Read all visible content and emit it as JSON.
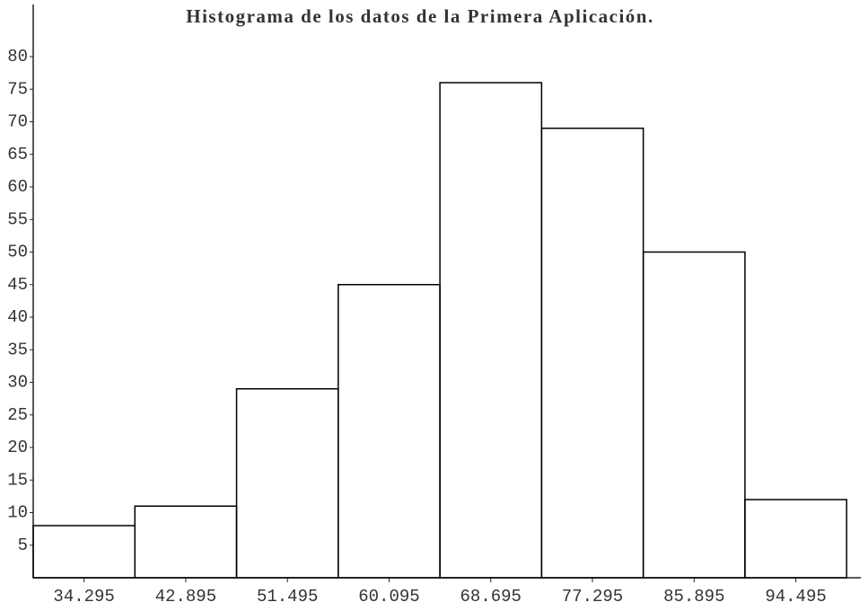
{
  "chart_data": {
    "type": "histogram",
    "title": "Histograma de los datos de la Primera Aplicación.",
    "bins": [
      29.995,
      38.595,
      47.195,
      55.795,
      64.395,
      72.995,
      81.595,
      90.195,
      98.795
    ],
    "counts": [
      8,
      11,
      29,
      45,
      76,
      69,
      50,
      12
    ],
    "color": "#000000",
    "xlim": [
      29.995,
      99.995
    ],
    "xticks": [
      34.295,
      42.895,
      51.495,
      60.095,
      68.695,
      77.295,
      85.895,
      94.495
    ],
    "ylim": [
      0,
      88
    ],
    "yticks": [
      5,
      10,
      15,
      20,
      25,
      30,
      35,
      40,
      45,
      50,
      55,
      60,
      65,
      70,
      75,
      80
    ],
    "grid": false
  }
}
